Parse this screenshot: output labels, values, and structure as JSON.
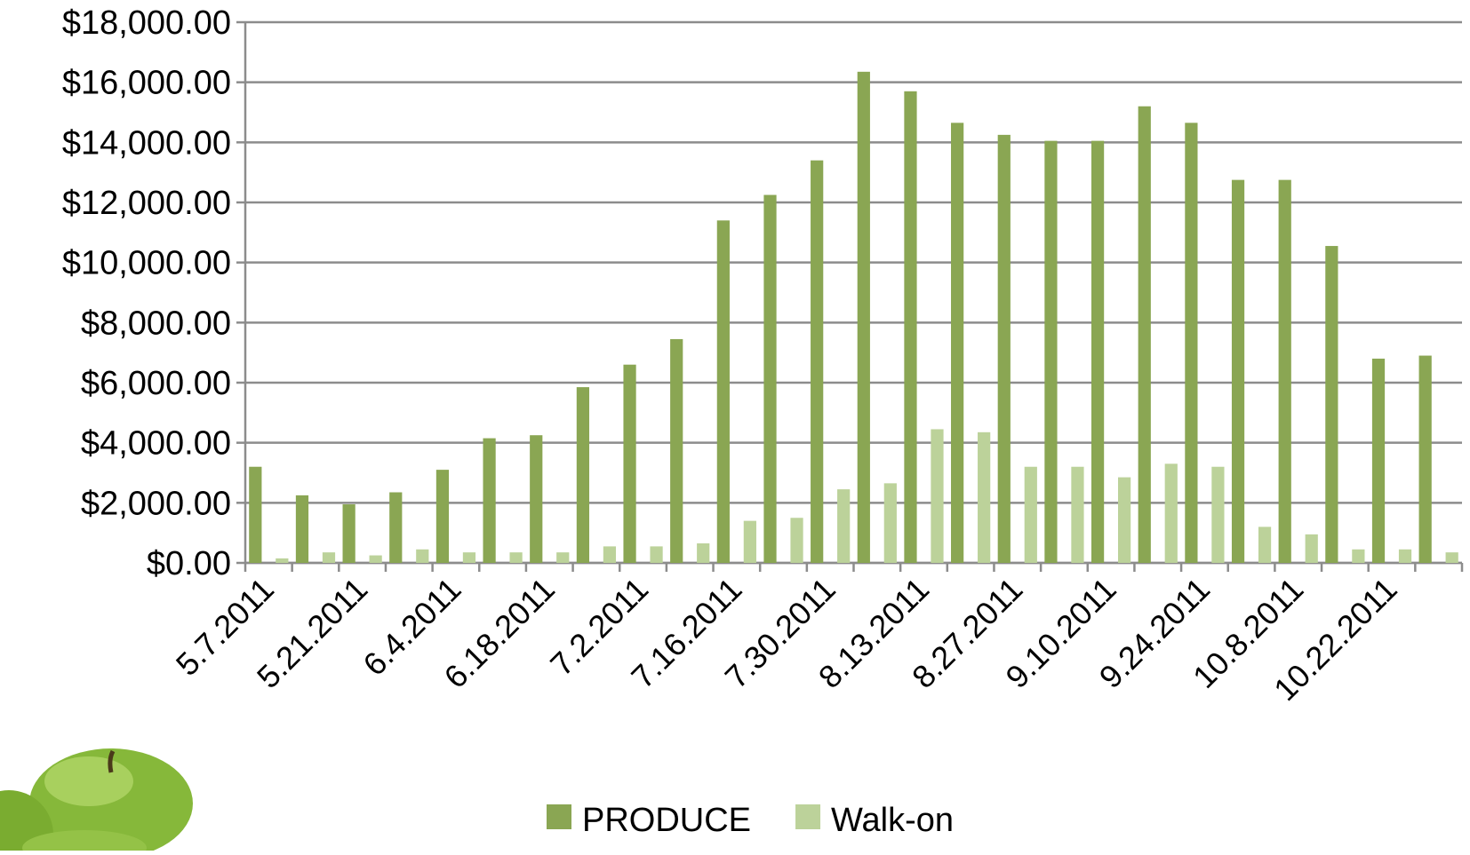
{
  "chart_data": {
    "type": "bar",
    "categories": [
      "5.7.2011",
      null,
      "5.21.2011",
      null,
      "6.4.2011",
      null,
      "6.18.2011",
      null,
      "7.2.2011",
      null,
      "7.16.2011",
      null,
      "7.30.2011",
      null,
      "8.13.2011",
      null,
      "8.27.2011",
      null,
      "9.10.2011",
      null,
      "9.24.2011",
      null,
      "10.8.2011",
      null,
      "10.22.2011",
      null
    ],
    "series": [
      {
        "name": "PRODUCE",
        "color": "#8aa653",
        "values": [
          3200,
          2250,
          1950,
          2350,
          3100,
          4150,
          4250,
          5850,
          6600,
          7450,
          11400,
          12250,
          13400,
          16350,
          15700,
          14650,
          14250,
          14050,
          14050,
          15200,
          14650,
          12750,
          12750,
          10550,
          6800,
          6900
        ]
      },
      {
        "name": "Walk-on",
        "color": "#bcd29a",
        "values": [
          150,
          350,
          250,
          450,
          350,
          350,
          350,
          550,
          550,
          650,
          1400,
          1500,
          2450,
          2650,
          4450,
          4350,
          3200,
          3200,
          2850,
          3300,
          3200,
          1200,
          950,
          450,
          450,
          350
        ]
      }
    ],
    "ylim": [
      0,
      18000
    ],
    "yticks": [
      {
        "value": 0,
        "label": "$0.00"
      },
      {
        "value": 2000,
        "label": "$2,000.00"
      },
      {
        "value": 4000,
        "label": "$4,000.00"
      },
      {
        "value": 6000,
        "label": "$6,000.00"
      },
      {
        "value": 8000,
        "label": "$8,000.00"
      },
      {
        "value": 10000,
        "label": "$10,000.00"
      },
      {
        "value": 12000,
        "label": "$12,000.00"
      },
      {
        "value": 14000,
        "label": "$14,000.00"
      },
      {
        "value": 16000,
        "label": "$16,000.00"
      },
      {
        "value": 18000,
        "label": "$18,000.00"
      }
    ],
    "grid": true,
    "legend": "bottom"
  }
}
